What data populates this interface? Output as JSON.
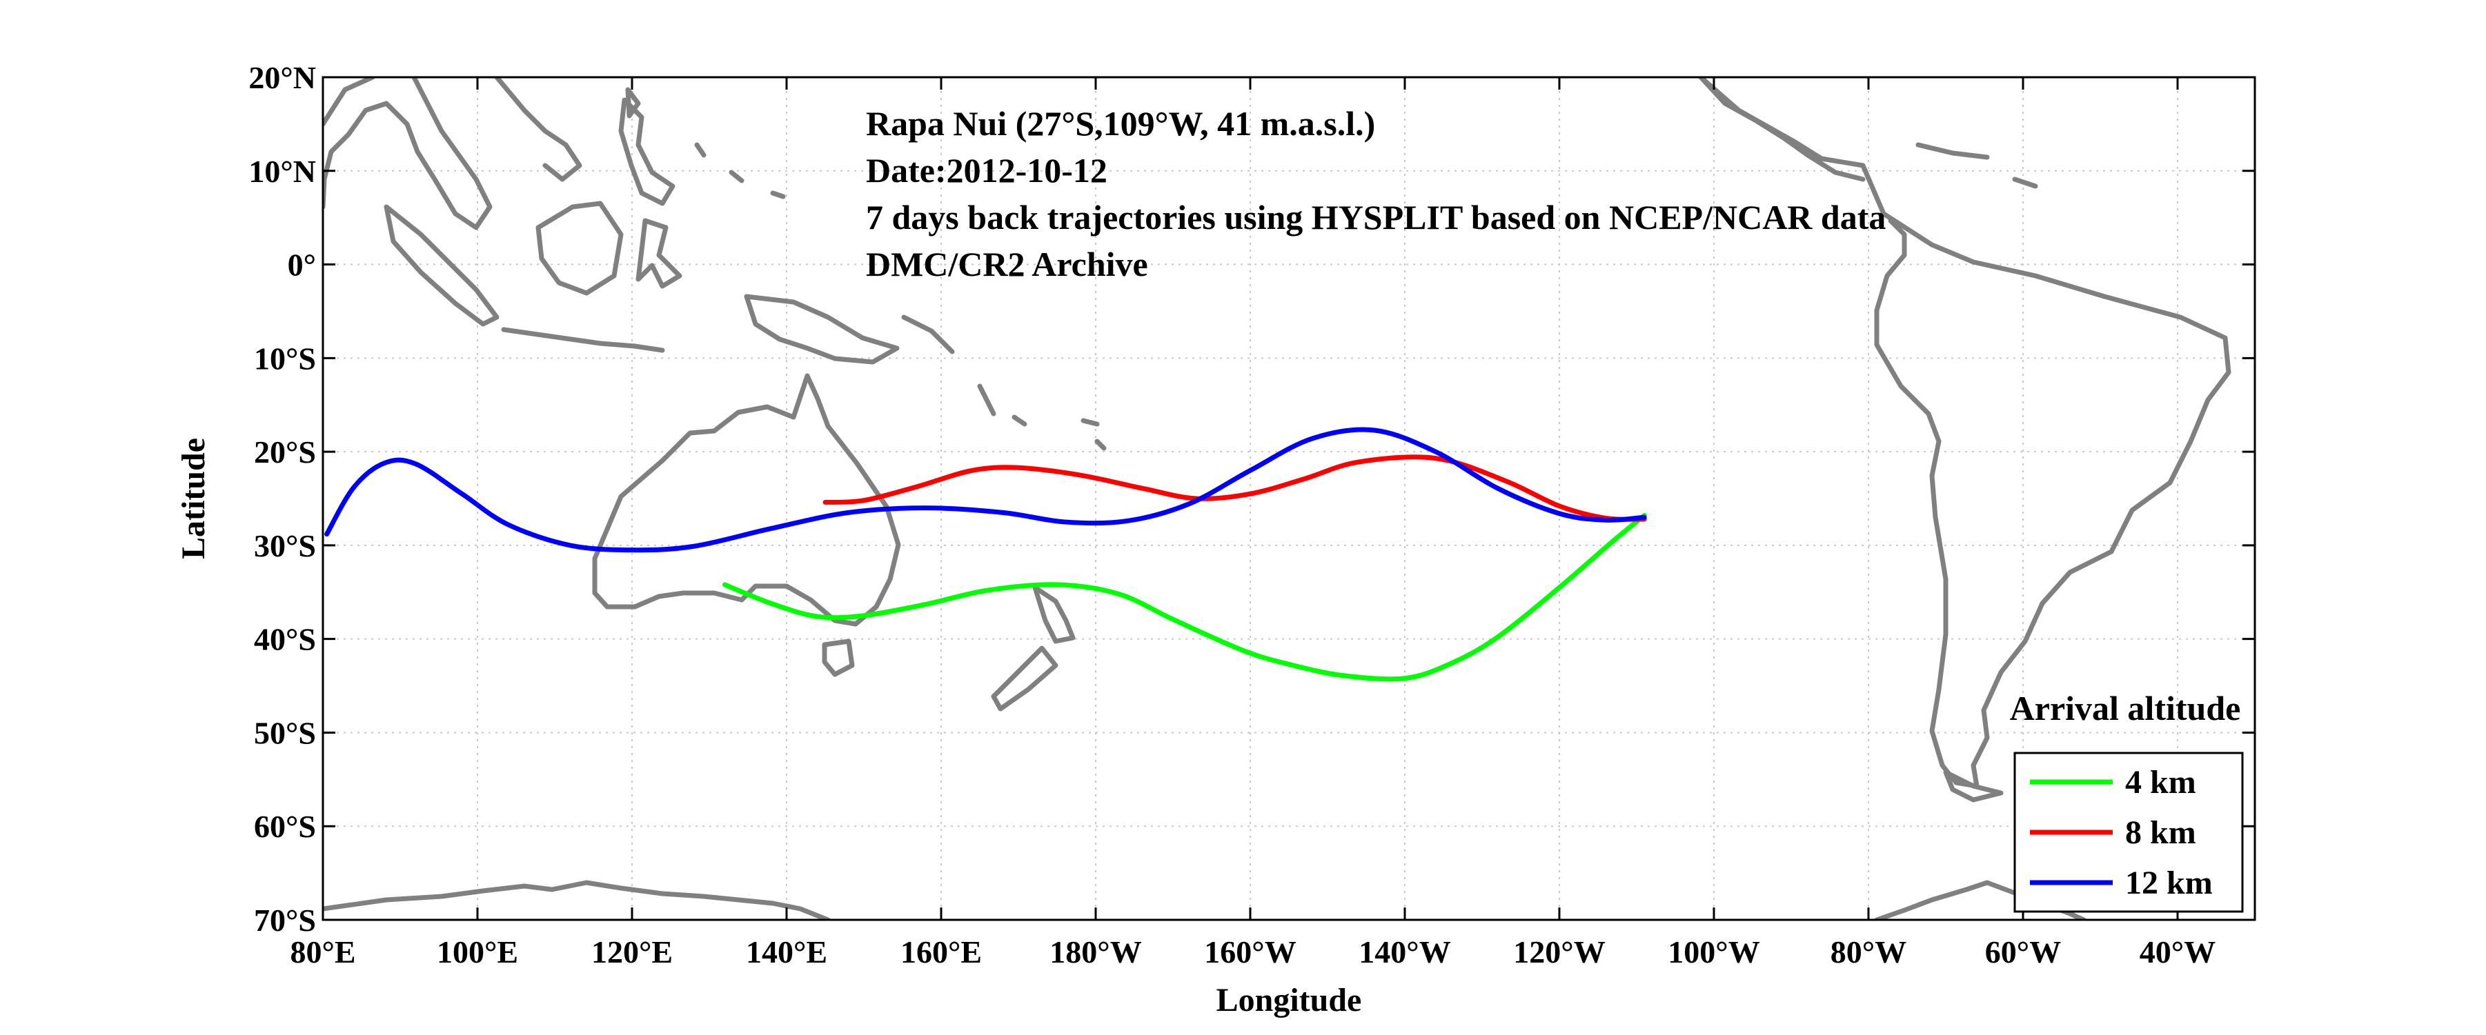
{
  "chart_data": {
    "type": "line",
    "annotations": [
      "Rapa Nui (27°S,109°W, 41 m.a.s.l.)",
      "Date:2012-10-12",
      "7 days back trajectories using HYSPLIT based on NCEP/NCAR data",
      "DMC/CR2 Archive"
    ],
    "xlabel": "Longitude",
    "ylabel": "Latitude",
    "xlim": [
      80,
      330
    ],
    "ylim": [
      -70,
      20
    ],
    "grid": true,
    "xticks": [
      {
        "value": 80,
        "label": "80°E"
      },
      {
        "value": 100,
        "label": "100°E"
      },
      {
        "value": 120,
        "label": "120°E"
      },
      {
        "value": 140,
        "label": "140°E"
      },
      {
        "value": 160,
        "label": "160°E"
      },
      {
        "value": 180,
        "label": "180°W"
      },
      {
        "value": 200,
        "label": "160°W"
      },
      {
        "value": 220,
        "label": "140°W"
      },
      {
        "value": 240,
        "label": "120°W"
      },
      {
        "value": 260,
        "label": "100°W"
      },
      {
        "value": 280,
        "label": "80°W"
      },
      {
        "value": 300,
        "label": "60°W"
      },
      {
        "value": 320,
        "label": "40°W"
      }
    ],
    "yticks": [
      {
        "value": 20,
        "label": "20°N"
      },
      {
        "value": 10,
        "label": "10°N"
      },
      {
        "value": 0,
        "label": "0°"
      },
      {
        "value": -10,
        "label": "10°S"
      },
      {
        "value": -20,
        "label": "20°S"
      },
      {
        "value": -30,
        "label": "30°S"
      },
      {
        "value": -40,
        "label": "40°S"
      },
      {
        "value": -50,
        "label": "50°S"
      },
      {
        "value": -60,
        "label": "60°S"
      },
      {
        "value": -70,
        "label": "70°S"
      }
    ],
    "legend": {
      "title": "Arrival altitude",
      "position": "bottom-right",
      "entries": [
        "4 km",
        "8 km",
        "12 km"
      ]
    },
    "series": [
      {
        "name": "4 km",
        "color": "#00ff00",
        "x": [
          251,
          247,
          240,
          232,
          226,
          220,
          212,
          205,
          199,
          190,
          183,
          175,
          166,
          158,
          150,
          144,
          138,
          132
        ],
        "y": [
          -26.8,
          -29.5,
          -34.5,
          -39.8,
          -42.6,
          -44.2,
          -43.9,
          -42.7,
          -41.2,
          -37.9,
          -35.2,
          -34.2,
          -34.8,
          -36.3,
          -37.5,
          -37.6,
          -36.2,
          -34.2
        ]
      },
      {
        "name": "8 km",
        "color": "#ff0000",
        "x": [
          251,
          246,
          240,
          233,
          224,
          214,
          207,
          200,
          193,
          186,
          178,
          170,
          164,
          157,
          150,
          145
        ],
        "y": [
          -27.2,
          -27.1,
          -25.8,
          -23.1,
          -20.7,
          -21.1,
          -22.9,
          -24.5,
          -25.0,
          -23.9,
          -22.5,
          -21.7,
          -22.0,
          -23.7,
          -25.2,
          -25.4
        ]
      },
      {
        "name": "12 km",
        "color": "#0000ff",
        "x": [
          251,
          246,
          240,
          232,
          224,
          216,
          208,
          200,
          192,
          184,
          176,
          168,
          158,
          148,
          138,
          128,
          120,
          112,
          104,
          98,
          92,
          88,
          84,
          80.5
        ],
        "y": [
          -27.0,
          -27.3,
          -26.6,
          -23.9,
          -20.0,
          -17.7,
          -18.6,
          -22.0,
          -25.6,
          -27.4,
          -27.5,
          -26.5,
          -26.0,
          -26.5,
          -28.2,
          -30.1,
          -30.5,
          -30.0,
          -27.8,
          -24.5,
          -21.3,
          -21.2,
          -23.8,
          -28.8
        ]
      }
    ]
  },
  "map": {
    "coastline_color": "#808080",
    "features": [
      "Australia",
      "Indonesia",
      "New Guinea",
      "New Zealand",
      "Pacific islands",
      "South America",
      "Antarctica"
    ]
  }
}
